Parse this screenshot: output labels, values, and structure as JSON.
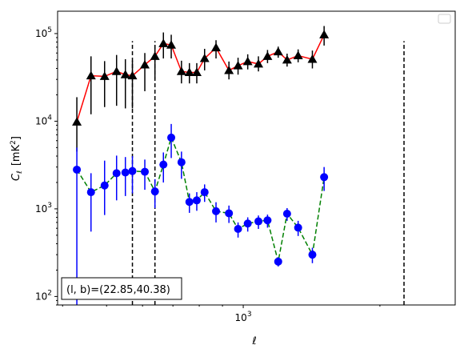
{
  "chart_data": {
    "type": "scatter",
    "title": "",
    "xlabel": "ℓ",
    "ylabel": "C",
    "ylabel_sub": "ℓ",
    "ylabel_unit": "[mK",
    "ylabel_unit_sup": "2",
    "ylabel_unit_close": "]",
    "xscale": "log",
    "yscale": "log",
    "xlim": [
      390,
      2930
    ],
    "ylim": [
      80,
      180000
    ],
    "x_tick_labels": [
      {
        "base": "10",
        "exp": "3",
        "value": 1000
      }
    ],
    "y_tick_labels": [
      {
        "base": "10",
        "exp": "2",
        "value": 100
      },
      {
        "base": "10",
        "exp": "3",
        "value": 1000
      },
      {
        "base": "10",
        "exp": "4",
        "value": 10000
      },
      {
        "base": "10",
        "exp": "5",
        "value": 100000
      }
    ],
    "grid": false,
    "legend": "top-right (empty)",
    "annotation": "(l, b)=(22.85,40.38)",
    "vlines": [
      {
        "x": 570,
        "ymin": 80,
        "ymax": 82000
      },
      {
        "x": 639,
        "ymin": 80,
        "ymax": 82000
      },
      {
        "x": 2260,
        "ymin": 80,
        "ymax": 82000
      }
    ],
    "series": [
      {
        "marker": "triangle",
        "marker_color": "#000000",
        "line_color": "#ff0000",
        "line_style": "solid",
        "x": [
          430,
          462,
          495,
          526,
          550,
          570,
          607,
          639,
          667,
          694,
          731,
          761,
          790,
          822,
          871,
          930,
          974,
          1023,
          1080,
          1131,
          1194,
          1249,
          1321,
          1420,
          1507,
          1600,
          1685,
          1787,
          1900
        ],
        "y": [
          9800,
          33000,
          32500,
          37000,
          34000,
          33000,
          44000,
          55000,
          77000,
          74000,
          37000,
          36000,
          36000,
          52000,
          69000,
          38000,
          43000,
          48000,
          45000,
          55000,
          62000,
          50000,
          56000,
          51000,
          97000,
          null,
          null,
          null,
          null
        ],
        "err_low": [
          5300,
          21000,
          18000,
          22000,
          20000,
          19000,
          22000,
          25000,
          25000,
          22000,
          10000,
          9000,
          9000,
          14000,
          17000,
          8000,
          9000,
          9000,
          8000,
          9000,
          9000,
          8000,
          9000,
          11000,
          24000,
          null,
          null,
          null,
          null
        ],
        "err_high": [
          9000,
          22000,
          16000,
          20000,
          17000,
          16000,
          16000,
          19000,
          26000,
          23000,
          12000,
          10000,
          10000,
          15000,
          15000,
          10000,
          10000,
          10000,
          10000,
          10000,
          9000,
          9000,
          10000,
          13000,
          25000,
          null,
          null,
          null,
          null
        ]
      },
      {
        "marker": "circle",
        "marker_color": "#0000ff",
        "line_color": "#008000",
        "line_style": "dashed",
        "x": [
          430,
          462,
          495,
          526,
          550,
          570,
          607,
          639,
          667,
          694,
          731,
          761,
          790,
          822,
          871,
          930,
          974,
          1023,
          1080,
          1131,
          1194,
          1249,
          1321,
          1420,
          1507,
          1600,
          1685,
          1787,
          1900
        ],
        "y": [
          2800,
          1550,
          1850,
          2550,
          2600,
          2700,
          2650,
          1580,
          3200,
          6500,
          3400,
          1200,
          1250,
          1550,
          940,
          890,
          590,
          680,
          720,
          740,
          250,
          880,
          610,
          300,
          2300,
          null,
          null,
          null,
          null
        ],
        "err_low": [
          2725,
          1000,
          1000,
          1300,
          1200,
          1200,
          1000,
          560,
          1200,
          2700,
          1200,
          300,
          300,
          350,
          240,
          200,
          120,
          130,
          130,
          130,
          30,
          150,
          120,
          60,
          700,
          null,
          null,
          null,
          null
        ],
        "err_high": [
          2200,
          1000,
          1700,
          1500,
          1300,
          1300,
          1000,
          600,
          1200,
          2800,
          1100,
          300,
          300,
          350,
          250,
          200,
          110,
          120,
          120,
          120,
          30,
          140,
          120,
          60,
          700,
          null,
          null,
          null,
          null
        ]
      }
    ]
  }
}
